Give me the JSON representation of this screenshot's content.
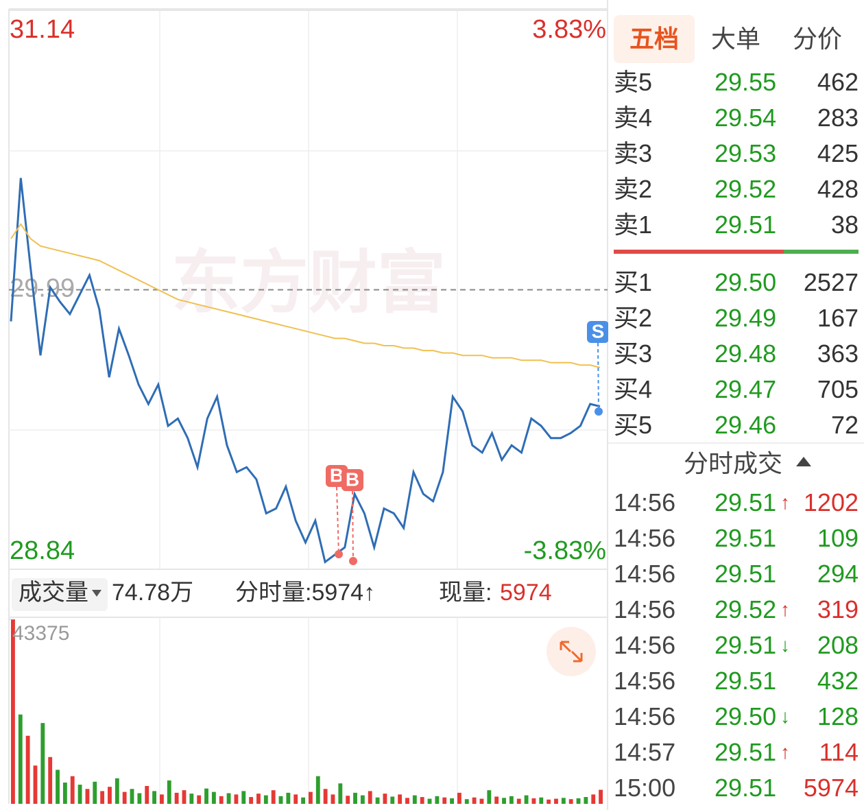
{
  "chart_data": [
    {
      "type": "line",
      "categories": [
        null,
        null,
        null,
        null,
        null,
        null,
        null,
        null,
        null,
        null,
        null,
        null,
        null,
        null,
        null,
        null,
        null,
        null,
        null,
        null,
        null,
        null,
        null,
        null,
        null,
        null,
        null,
        null,
        null,
        null,
        null,
        null,
        null,
        null,
        null,
        null,
        null,
        null,
        null,
        null,
        null,
        null,
        null,
        null,
        null,
        null,
        null,
        null,
        null,
        null,
        null,
        null,
        null,
        null,
        null,
        null,
        null,
        null,
        null,
        null,
        null
      ],
      "series": [
        {
          "color": "#2f6db5",
          "values": [
            29.86,
            30.45,
            30.08,
            29.72,
            30.0,
            29.94,
            29.89,
            29.97,
            30.05,
            29.91,
            29.63,
            29.83,
            29.72,
            29.6,
            29.52,
            29.6,
            29.43,
            29.46,
            29.38,
            29.26,
            29.46,
            29.55,
            29.35,
            29.24,
            29.26,
            29.21,
            29.07,
            29.09,
            29.18,
            29.04,
            28.95,
            29.04,
            28.87,
            28.9,
            28.93,
            29.15,
            29.07,
            28.93,
            29.09,
            29.07,
            29.01,
            29.24,
            29.15,
            29.12,
            29.24,
            29.55,
            29.49,
            29.35,
            29.32,
            29.4,
            29.29,
            29.35,
            29.32,
            29.46,
            29.43,
            29.38,
            29.38,
            29.4,
            29.43,
            29.52,
            29.51
          ]
        },
        {
          "color": "#f0c050",
          "values": [
            30.2,
            30.26,
            30.2,
            30.17,
            30.16,
            30.15,
            30.14,
            30.13,
            30.12,
            30.11,
            30.09,
            30.07,
            30.05,
            30.03,
            30.01,
            29.99,
            29.97,
            29.95,
            29.94,
            29.93,
            29.92,
            29.91,
            29.9,
            29.89,
            29.88,
            29.87,
            29.86,
            29.85,
            29.84,
            29.83,
            29.82,
            29.81,
            29.8,
            29.79,
            29.79,
            29.78,
            29.77,
            29.77,
            29.76,
            29.76,
            29.75,
            29.75,
            29.74,
            29.74,
            29.73,
            29.73,
            29.72,
            29.72,
            29.72,
            29.71,
            29.71,
            29.71,
            29.7,
            29.7,
            29.7,
            29.69,
            29.69,
            29.69,
            29.68,
            29.68,
            29.67
          ]
        }
      ],
      "ylim": [
        28.84,
        31.14
      ],
      "yticks": [
        31.14,
        29.99,
        28.84
      ],
      "ytick_colors": [
        "#d9302b",
        "#aaaaaa",
        "#1f9a1f"
      ],
      "y2lim": [
        -3.83,
        3.83
      ],
      "y2ticks": [
        {
          "value": 3.83,
          "label": "3.83%"
        },
        {
          "value": -3.83,
          "label": "-3.83%"
        }
      ],
      "y2tick_colors": [
        "#d9302b",
        "#1f9a1f"
      ],
      "grid": true,
      "markers": [
        {
          "label": "B",
          "color": "#ef6b63"
        },
        {
          "label": "B",
          "color": "#ef6b63"
        },
        {
          "label": "S",
          "color": "#4a90e8"
        }
      ],
      "watermark": "东方财富"
    },
    {
      "type": "bar",
      "values": [
        43375,
        21000,
        16000,
        9000,
        19000,
        11000,
        8000,
        5000,
        6500,
        4500,
        3500,
        5200,
        3000,
        4000,
        6000,
        2800,
        3500,
        2500,
        4200,
        3000,
        2200,
        5500,
        2600,
        3200,
        2400,
        2000,
        3600,
        2800,
        1800,
        2500,
        2200,
        3000,
        1600,
        2400,
        2000,
        3200,
        1800,
        2600,
        2200,
        1500,
        2800,
        6500,
        3500,
        2200,
        4800,
        1900,
        2600,
        2000,
        3000,
        1500,
        2400,
        1700,
        2200,
        1400,
        2000,
        1600,
        1200,
        1800,
        1500,
        1300,
        2600,
        1100,
        1500,
        1200,
        3200,
        1700,
        1400,
        1800,
        1200,
        2000,
        1300,
        1500,
        1000,
        1200,
        1400,
        1100,
        1300,
        1600,
        2200,
        3300
      ],
      "colors": [
        "#e53935",
        "#2e9e2e",
        "#e53935",
        "#e53935",
        "#2e9e2e",
        "#e53935",
        "#2e9e2e",
        "#2e9e2e",
        "#e53935",
        "#2e9e2e",
        "#e53935",
        "#2e9e2e",
        "#e53935",
        "#e53935",
        "#2e9e2e",
        "#e53935",
        "#2e9e2e",
        "#2e9e2e",
        "#e53935",
        "#2e9e2e",
        "#e53935",
        "#2e9e2e",
        "#e53935",
        "#e53935",
        "#2e9e2e",
        "#e53935",
        "#2e9e2e",
        "#2e9e2e",
        "#e53935",
        "#2e9e2e",
        "#e53935",
        "#2e9e2e",
        "#e53935",
        "#e53935",
        "#2e9e2e",
        "#e53935",
        "#2e9e2e",
        "#2e9e2e",
        "#e53935",
        "#2e9e2e",
        "#e53935",
        "#2e9e2e",
        "#e53935",
        "#e53935",
        "#2e9e2e",
        "#e53935",
        "#2e9e2e",
        "#2e9e2e",
        "#e53935",
        "#2e9e2e",
        "#e53935",
        "#2e9e2e",
        "#e53935",
        "#e53935",
        "#2e9e2e",
        "#e53935",
        "#2e9e2e",
        "#2e9e2e",
        "#e53935",
        "#2e9e2e",
        "#e53935",
        "#2e9e2e",
        "#e53935",
        "#e53935",
        "#2e9e2e",
        "#e53935",
        "#2e9e2e",
        "#2e9e2e",
        "#e53935",
        "#2e9e2e",
        "#e53935",
        "#2e9e2e",
        "#e53935",
        "#e53935",
        "#2e9e2e",
        "#e53935",
        "#2e9e2e",
        "#2e9e2e",
        "#e53935",
        "#e53935"
      ],
      "ylim": [
        0,
        43375
      ],
      "yticks": [
        43375
      ]
    }
  ],
  "volume_bar": {
    "label": "成交量",
    "total": "74.78万",
    "minute_volume": "分时量:5974↑",
    "current_label": "现量:",
    "current_value": "5974"
  },
  "tabs": [
    "五档",
    "大单",
    "分价"
  ],
  "asks": [
    {
      "label": "卖5",
      "price": "29.55",
      "volume": "462"
    },
    {
      "label": "卖4",
      "price": "29.54",
      "volume": "283"
    },
    {
      "label": "卖3",
      "price": "29.53",
      "volume": "425"
    },
    {
      "label": "卖2",
      "price": "29.52",
      "volume": "428"
    },
    {
      "label": "卖1",
      "price": "29.51",
      "volume": "38"
    }
  ],
  "bids": [
    {
      "label": "买1",
      "price": "29.50",
      "volume": "2527"
    },
    {
      "label": "买2",
      "price": "29.49",
      "volume": "167"
    },
    {
      "label": "买3",
      "price": "29.48",
      "volume": "363"
    },
    {
      "label": "买4",
      "price": "29.47",
      "volume": "705"
    },
    {
      "label": "买5",
      "price": "29.46",
      "volume": "72"
    }
  ],
  "trades_title": "分时成交",
  "trades": [
    {
      "time": "14:56",
      "price": "29.51",
      "arrow": "↑",
      "volume": "1202",
      "color": "#d9302b"
    },
    {
      "time": "14:56",
      "price": "29.51",
      "volume": "109",
      "color": "#1f9a1f"
    },
    {
      "time": "14:56",
      "price": "29.51",
      "volume": "294",
      "color": "#1f9a1f"
    },
    {
      "time": "14:56",
      "price": "29.52",
      "arrow": "↑",
      "volume": "319",
      "color": "#d9302b"
    },
    {
      "time": "14:56",
      "price": "29.51",
      "arrow": "↓",
      "volume": "208",
      "color": "#1f9a1f"
    },
    {
      "time": "14:56",
      "price": "29.51",
      "volume": "432",
      "color": "#1f9a1f"
    },
    {
      "time": "14:56",
      "price": "29.50",
      "arrow": "↓",
      "volume": "128",
      "color": "#1f9a1f"
    },
    {
      "time": "14:57",
      "price": "29.51",
      "arrow": "↑",
      "volume": "114",
      "color": "#d9302b"
    },
    {
      "time": "15:00",
      "price": "29.51",
      "volume": "5974",
      "color": "#d9302b"
    }
  ]
}
